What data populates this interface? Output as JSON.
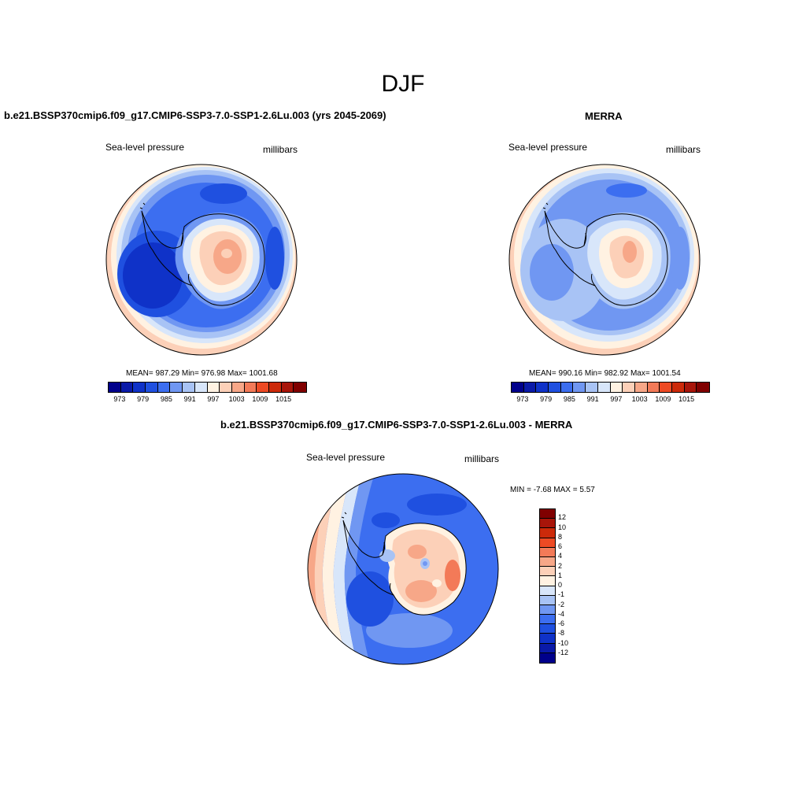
{
  "title": "DJF",
  "panels": {
    "model": {
      "title": "b.e21.BSSP370cmip6.f09_g17.CMIP6-SSP3-7.0-SSP1-2.6Lu.003 (yrs 2045-2069)",
      "left_label": "Sea-level pressure",
      "right_label": "millibars",
      "stats": "MEAN= 987.29  Min= 976.98  Max= 1001.68"
    },
    "obs": {
      "title": "MERRA",
      "left_label": "Sea-level pressure",
      "right_label": "millibars",
      "stats": "MEAN= 990.16  Min= 982.92  Max= 1001.54"
    },
    "diff": {
      "title": "b.e21.BSSP370cmip6.f09_g17.CMIP6-SSP3-7.0-SSP1-2.6Lu.003 - MERRA",
      "left_label": "Sea-level pressure",
      "right_label": "millibars",
      "stats": "MIN =  -7.68 MAX =   5.57"
    }
  },
  "colorbar_abs": {
    "colors": [
      "#00008b",
      "#0a1aa8",
      "#0f32c8",
      "#1f50e0",
      "#3c6ef0",
      "#7097f2",
      "#a8c3f5",
      "#d8e6fa",
      "#fff2e2",
      "#fcd0b8",
      "#f7a788",
      "#f37a58",
      "#ed4a24",
      "#cc2a0a",
      "#a8150a",
      "#800000"
    ],
    "ticks": [
      "973",
      "979",
      "985",
      "991",
      "997",
      "1003",
      "1009",
      "1015"
    ]
  },
  "colorbar_diff": {
    "colors": [
      "#800000",
      "#a8150a",
      "#cc2a0a",
      "#ed4a24",
      "#f37a58",
      "#f7a788",
      "#fcd0b8",
      "#fff2e2",
      "#d8e6fa",
      "#a8c3f5",
      "#7097f2",
      "#3c6ef0",
      "#1f50e0",
      "#0f32c8",
      "#0a1aa8",
      "#00008b"
    ],
    "ticks": [
      "12",
      "10",
      "8",
      "6",
      "4",
      "2",
      "1",
      "0",
      "-1",
      "-2",
      "-4",
      "-6",
      "-8",
      "-10",
      "-12"
    ]
  }
}
